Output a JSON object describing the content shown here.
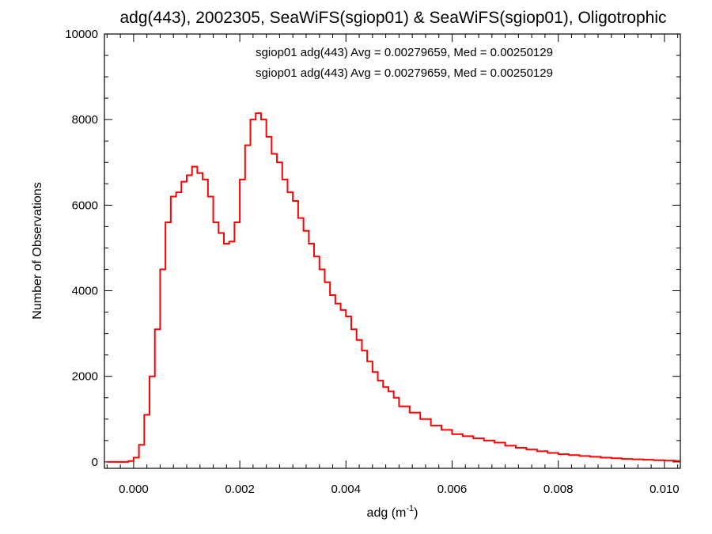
{
  "chart_data": {
    "type": "line",
    "title": "adg(443), 2002305, SeaWiFS(sgiop01) & SeaWiFS(sgiop01), Oligotrophic",
    "xlabel": "adg (m",
    "xlabel_sup": "-1",
    "xlabel_close": ")",
    "ylabel": "Number of Observations",
    "xlim": [
      -0.00055,
      0.0103
    ],
    "ylim": [
      -150,
      10000
    ],
    "x_ticks": [
      0.0,
      0.002,
      0.004,
      0.006,
      0.008,
      0.01
    ],
    "x_tick_labels": [
      "0.000",
      "0.002",
      "0.004",
      "0.006",
      "0.008",
      "0.010"
    ],
    "y_ticks": [
      0,
      2000,
      4000,
      6000,
      8000,
      10000
    ],
    "y_tick_labels": [
      "0",
      "2000",
      "4000",
      "6000",
      "8000",
      "10000"
    ],
    "legend_position": "top-center",
    "legend": [
      {
        "text": "sgiop01 adg(443) Avg = 0.00279659, Med = 0.00250129",
        "color": "#000000"
      },
      {
        "text": "sgiop01 adg(443) Avg = 0.00279659, Med = 0.00250129",
        "color": "#ff0000"
      }
    ],
    "series": [
      {
        "color": "#ff0000",
        "step": true,
        "x": [
          -0.0005,
          -0.0003,
          -0.0001,
          0.0,
          0.0001,
          0.0002,
          0.0003,
          0.0004,
          0.0005,
          0.0006,
          0.0007,
          0.0008,
          0.0009,
          0.001,
          0.0011,
          0.0012,
          0.0013,
          0.0014,
          0.0015,
          0.0016,
          0.0017,
          0.0018,
          0.0019,
          0.002,
          0.0021,
          0.0022,
          0.0023,
          0.0024,
          0.0025,
          0.0026,
          0.0027,
          0.0028,
          0.0029,
          0.003,
          0.0031,
          0.0032,
          0.0033,
          0.0034,
          0.0035,
          0.0036,
          0.0037,
          0.0038,
          0.0039,
          0.004,
          0.0041,
          0.0042,
          0.0043,
          0.0044,
          0.0045,
          0.0046,
          0.0047,
          0.0048,
          0.0049,
          0.005,
          0.0052,
          0.0054,
          0.0056,
          0.0058,
          0.006,
          0.0062,
          0.0064,
          0.0066,
          0.0068,
          0.007,
          0.0072,
          0.0074,
          0.0076,
          0.0078,
          0.008,
          0.0082,
          0.0084,
          0.0086,
          0.0088,
          0.009,
          0.0092,
          0.0094,
          0.0096,
          0.0098,
          0.01,
          0.0102
        ],
        "y": [
          0,
          0,
          20,
          100,
          400,
          1100,
          2000,
          3100,
          4500,
          5600,
          6200,
          6300,
          6550,
          6700,
          6900,
          6750,
          6600,
          6200,
          5600,
          5350,
          5100,
          5150,
          5600,
          6600,
          7400,
          8000,
          8150,
          8000,
          7600,
          7200,
          7000,
          6600,
          6300,
          6100,
          5700,
          5400,
          5100,
          4800,
          4500,
          4200,
          3900,
          3700,
          3550,
          3400,
          3100,
          2850,
          2600,
          2350,
          2100,
          1900,
          1750,
          1650,
          1500,
          1300,
          1150,
          1000,
          850,
          750,
          650,
          600,
          550,
          500,
          450,
          380,
          330,
          290,
          250,
          210,
          180,
          160,
          140,
          120,
          100,
          85,
          70,
          60,
          50,
          40,
          30,
          20
        ]
      }
    ]
  }
}
